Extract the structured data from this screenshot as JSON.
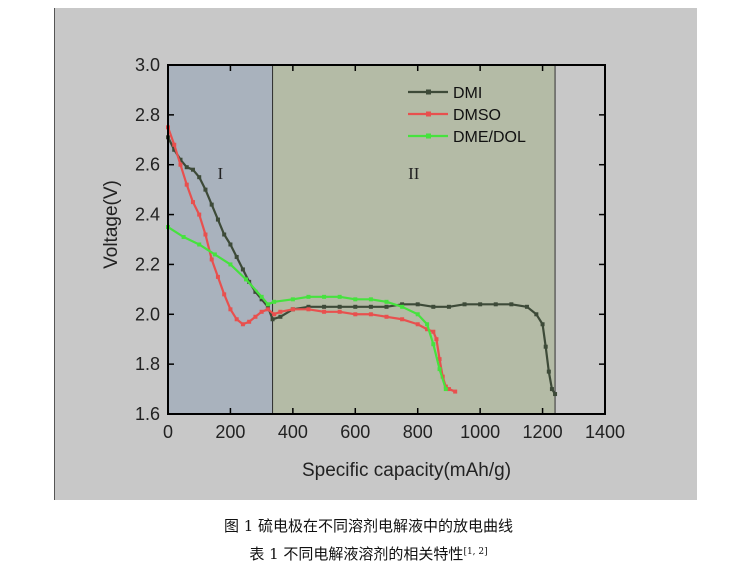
{
  "figure": {
    "caption_1": "图 1  硫电极在不同溶剂电解液中的放电曲线",
    "caption_2": "表 1  不同电解液溶剂的相关特性",
    "caption_2_ref": "[1, 2]"
  },
  "chart_data": {
    "type": "line",
    "title": "",
    "xlabel": "Specific capacity(mAh/g)",
    "ylabel": "Voltage(V)",
    "xlim": [
      0,
      1400
    ],
    "ylim": [
      1.6,
      3.0
    ],
    "xticks": [
      "0",
      "200",
      "400",
      "600",
      "800",
      "1000",
      "1200",
      "1400"
    ],
    "yticks": [
      "1.6",
      "1.8",
      "2.0",
      "2.2",
      "2.4",
      "2.6",
      "2.8",
      "3.0"
    ],
    "grid": false,
    "legend_position": "top-right",
    "regions": [
      {
        "label": "I",
        "x_range": [
          0,
          335
        ],
        "color": "#a9b2bd"
      },
      {
        "label": "II",
        "x_range": [
          335,
          1240
        ],
        "color": "#b4bba6"
      }
    ],
    "series": [
      {
        "name": "DMI",
        "color": "#3d4a38",
        "x": [
          0,
          20,
          40,
          60,
          80,
          100,
          120,
          140,
          160,
          180,
          200,
          220,
          240,
          260,
          280,
          300,
          320,
          335,
          360,
          400,
          450,
          500,
          550,
          600,
          650,
          700,
          750,
          800,
          850,
          900,
          950,
          1000,
          1050,
          1100,
          1150,
          1180,
          1200,
          1210,
          1220,
          1230,
          1240
        ],
        "y": [
          2.71,
          2.66,
          2.62,
          2.59,
          2.58,
          2.55,
          2.5,
          2.44,
          2.38,
          2.32,
          2.28,
          2.23,
          2.18,
          2.13,
          2.09,
          2.06,
          2.03,
          1.98,
          1.99,
          2.02,
          2.03,
          2.03,
          2.03,
          2.03,
          2.03,
          2.03,
          2.04,
          2.04,
          2.03,
          2.03,
          2.04,
          2.04,
          2.04,
          2.04,
          2.03,
          2.0,
          1.96,
          1.87,
          1.77,
          1.7,
          1.68
        ]
      },
      {
        "name": "DMSO",
        "color": "#e8504e",
        "x": [
          0,
          20,
          40,
          60,
          80,
          100,
          120,
          140,
          160,
          180,
          200,
          220,
          240,
          260,
          280,
          300,
          320,
          340,
          360,
          400,
          450,
          500,
          550,
          600,
          650,
          700,
          750,
          800,
          830,
          850,
          860,
          870,
          880,
          890,
          900,
          920
        ],
        "y": [
          2.75,
          2.68,
          2.6,
          2.52,
          2.45,
          2.4,
          2.32,
          2.22,
          2.15,
          2.08,
          2.02,
          1.98,
          1.96,
          1.97,
          1.99,
          2.01,
          2.02,
          2.0,
          2.01,
          2.02,
          2.02,
          2.01,
          2.01,
          2.0,
          2.0,
          1.99,
          1.98,
          1.96,
          1.94,
          1.93,
          1.9,
          1.82,
          1.75,
          1.71,
          1.7,
          1.69
        ]
      },
      {
        "name": "DME/DOL",
        "color": "#46e23e",
        "x": [
          0,
          50,
          100,
          150,
          200,
          250,
          300,
          320,
          340,
          400,
          450,
          500,
          550,
          600,
          650,
          700,
          750,
          800,
          830,
          850,
          870,
          890
        ],
        "y": [
          2.35,
          2.31,
          2.28,
          2.24,
          2.2,
          2.14,
          2.07,
          2.04,
          2.05,
          2.06,
          2.07,
          2.07,
          2.07,
          2.06,
          2.06,
          2.05,
          2.03,
          2.0,
          1.96,
          1.88,
          1.78,
          1.7
        ]
      }
    ]
  }
}
